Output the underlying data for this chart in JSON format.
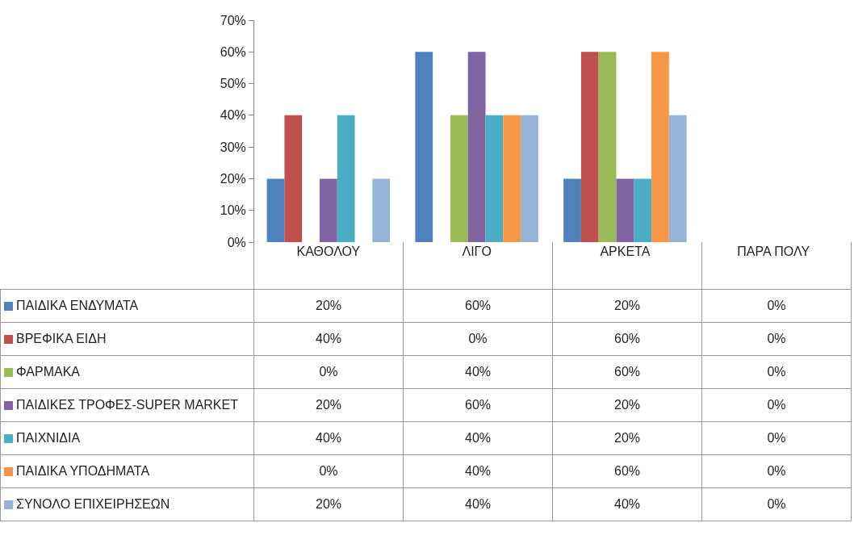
{
  "chart_data": {
    "type": "bar",
    "categories": [
      "ΚΑΘΟΛΟΥ",
      "ΛΙΓΟ",
      "ΑΡΚΕΤΑ",
      "ΠΑΡΑ ΠΟΛΥ"
    ],
    "ylim": [
      0,
      70
    ],
    "yticks": [
      {
        "value": 0,
        "label": "0%"
      },
      {
        "value": 10,
        "label": "10%"
      },
      {
        "value": 20,
        "label": "20%"
      },
      {
        "value": 30,
        "label": "30%"
      },
      {
        "value": 40,
        "label": "40%"
      },
      {
        "value": 50,
        "label": "50%"
      },
      {
        "value": 60,
        "label": "60%"
      },
      {
        "value": 70,
        "label": "70%"
      }
    ],
    "grid": false,
    "legend": "bottom",
    "series": [
      {
        "name": "ΠΑΙΔΙΚΑ ΕΝΔΥΜΑΤΑ",
        "color": "#4f81bd",
        "values": [
          20,
          60,
          20,
          0
        ],
        "value_labels": [
          "20%",
          "60%",
          "20%",
          "0%"
        ]
      },
      {
        "name": "ΒΡΕΦΙΚΑ ΕΙΔΗ",
        "color": "#c0504d",
        "values": [
          40,
          0,
          60,
          0
        ],
        "value_labels": [
          "40%",
          "0%",
          "60%",
          "0%"
        ]
      },
      {
        "name": "ΦΑΡΜΑΚΑ",
        "color": "#9bbb59",
        "values": [
          0,
          40,
          60,
          0
        ],
        "value_labels": [
          "0%",
          "40%",
          "60%",
          "0%"
        ]
      },
      {
        "name": "ΠΑΙΔΙΚΕΣ ΤΡΟΦΕΣ-SUPER MARKET",
        "color": "#8064a2",
        "values": [
          20,
          60,
          20,
          0
        ],
        "value_labels": [
          "20%",
          "60%",
          "20%",
          "0%"
        ]
      },
      {
        "name": "ΠΑΙΧΝΙΔΙΑ",
        "color": "#4bacc6",
        "values": [
          40,
          40,
          20,
          0
        ],
        "value_labels": [
          "40%",
          "40%",
          "20%",
          "0%"
        ]
      },
      {
        "name": "ΠΑΙΔΙΚΑ ΥΠΟΔΗΜΑΤΑ",
        "color": "#f79646",
        "values": [
          0,
          40,
          60,
          0
        ],
        "value_labels": [
          "0%",
          "40%",
          "60%",
          "0%"
        ]
      },
      {
        "name": "ΣΥΝΟΛΟ ΕΠΙΧΕΙΡΗΣΕΩΝ",
        "color": "#95b3d7",
        "values": [
          20,
          40,
          40,
          0
        ],
        "value_labels": [
          "20%",
          "40%",
          "40%",
          "0%"
        ]
      }
    ]
  }
}
